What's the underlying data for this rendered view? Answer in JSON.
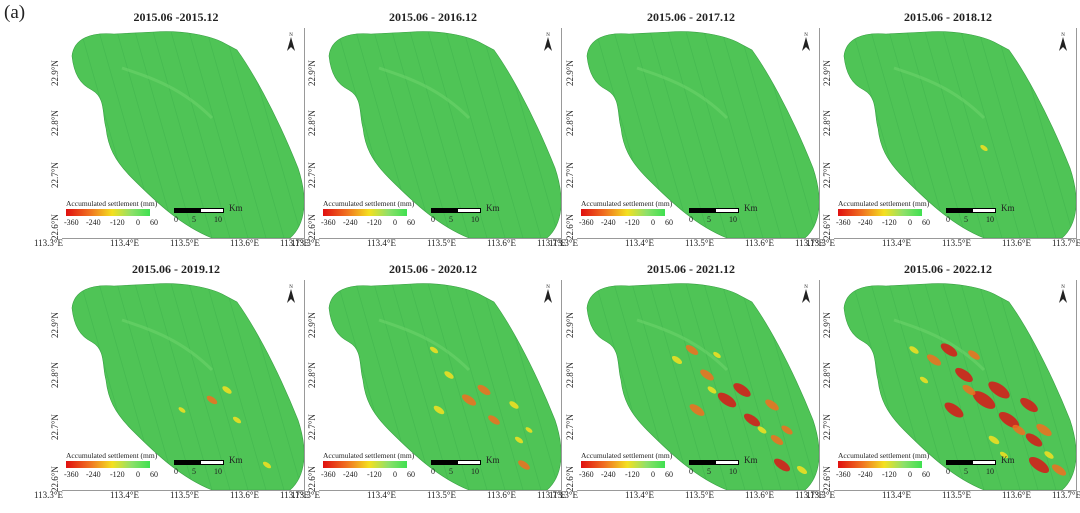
{
  "figure_label": "(a)",
  "map_colors": {
    "base": "#4fc456",
    "base_light": "#6cd46a",
    "hatch": "#3cae4c",
    "settle_low": "#f4e020",
    "settle_mid": "#f07020",
    "settle_high": "#d81818"
  },
  "shared": {
    "north_symbol": "N",
    "north_icon": "north-arrow-icon",
    "legend_title": "Accumulated settlement (mm)",
    "legend_ticks": [
      "-360",
      "-240",
      "-120",
      "0",
      "60"
    ],
    "scale_unit": "Km",
    "scale_ticks": [
      "0",
      "5",
      "10"
    ],
    "lat_ticks": [
      "22.9°N",
      "22.8°N",
      "22.7°N",
      "22.6°N"
    ],
    "lon_ticks": [
      "113.3°E",
      "113.4°E",
      "113.5°E",
      "113.6°E",
      "113.7°E"
    ]
  },
  "panels": [
    {
      "title": "2015.06 -2015.12",
      "settlement_level": 0.05
    },
    {
      "title": "2015.06 - 2016.12",
      "settlement_level": 0.12
    },
    {
      "title": "2015.06 - 2017.12",
      "settlement_level": 0.22
    },
    {
      "title": "2015.06 - 2018.12",
      "settlement_level": 0.32
    },
    {
      "title": "2015.06 - 2019.12",
      "settlement_level": 0.45
    },
    {
      "title": "2015.06 - 2020.12",
      "settlement_level": 0.6
    },
    {
      "title": "2015.06 - 2021.12",
      "settlement_level": 0.78
    },
    {
      "title": "2015.06 - 2022.12",
      "settlement_level": 0.95
    }
  ]
}
